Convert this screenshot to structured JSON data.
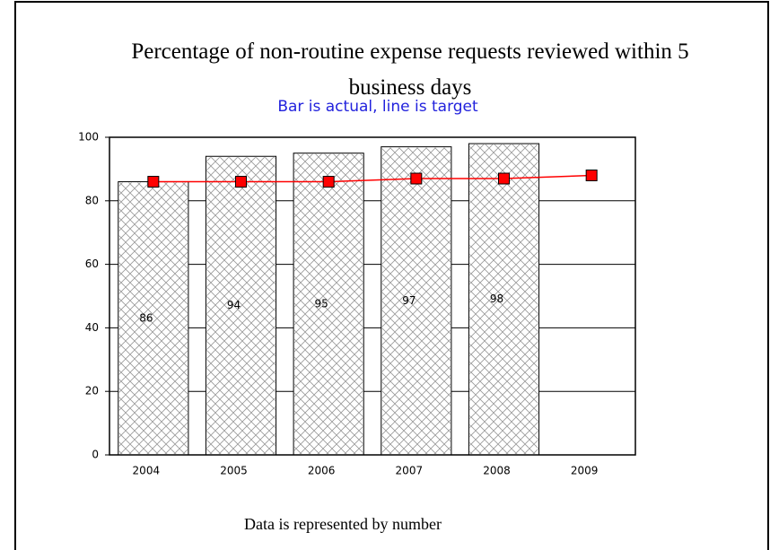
{
  "chart_data": {
    "type": "bar",
    "title": "Percentage of non-routine expense requests reviewed within 5 business days",
    "subtitle": "Bar is actual, line is target",
    "footer": "Data is represented by number",
    "categories": [
      "2004",
      "2005",
      "2006",
      "2007",
      "2008",
      "2009"
    ],
    "series": [
      {
        "type": "bar",
        "color": "#000000",
        "values": [
          86,
          94,
          95,
          97,
          98,
          null
        ]
      },
      {
        "type": "line",
        "color": "#ff0000",
        "values": [
          86,
          86,
          86,
          87,
          87,
          88
        ]
      }
    ],
    "ylim": [
      0,
      100
    ],
    "yticks": [
      0,
      20,
      40,
      60,
      80,
      100
    ],
    "grid": true
  }
}
